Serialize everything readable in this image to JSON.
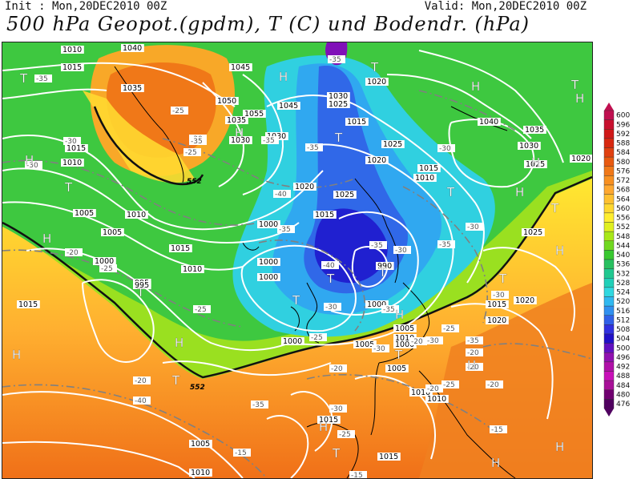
{
  "header": {
    "init": "Init : Mon,20DEC2010 00Z",
    "valid": "Valid: Mon,20DEC2010 00Z",
    "title": "500 hPa Geopot.(gpdm), T (C) und Bodendr. (hPa)"
  },
  "legend": {
    "levels": [
      "600",
      "596",
      "592",
      "588",
      "584",
      "580",
      "576",
      "572",
      "568",
      "564",
      "560",
      "556",
      "552",
      "548",
      "544",
      "540",
      "536",
      "532",
      "528",
      "524",
      "520",
      "516",
      "512",
      "508",
      "504",
      "500",
      "496",
      "492",
      "488",
      "484",
      "480",
      "476"
    ],
    "colors": [
      "#c01050",
      "#c8102e",
      "#d01818",
      "#d82810",
      "#e04010",
      "#e85a10",
      "#f07818",
      "#f89020",
      "#ffa830",
      "#ffc030",
      "#ffd830",
      "#ffee30",
      "#e0f020",
      "#a8e818",
      "#70d820",
      "#38c830",
      "#28c060",
      "#20c890",
      "#20d0b8",
      "#30d8e0",
      "#30b8f0",
      "#3090f0",
      "#3060e8",
      "#3030e0",
      "#2010c8",
      "#6010c0",
      "#9010b0",
      "#b010a8",
      "#c810b8",
      "#a81098",
      "#700070",
      "#500060"
    ]
  },
  "map": {
    "pressure_labels": [
      "1010",
      "1015",
      "1045",
      "1050",
      "1055",
      "1045",
      "1030",
      "1025",
      "1020",
      "1015",
      "1040",
      "1035",
      "1030",
      "1025",
      "1020",
      "1015",
      "1010",
      "1020",
      "1025",
      "1015",
      "1010",
      "1005",
      "1000",
      "995",
      "990",
      "1000",
      "1000",
      "995",
      "1000",
      "1005",
      "1010",
      "1015",
      "1020",
      "1025",
      "1030",
      "1035",
      "1040",
      "1035",
      "1030",
      "1015",
      "1010",
      "1005",
      "1000",
      "1000",
      "1005",
      "1010",
      "1015",
      "1015",
      "1010",
      "1005",
      "1010",
      "1020",
      "1025",
      "1020",
      "1015",
      "1010",
      "1005",
      "1000",
      "1015"
    ],
    "temp_labels": [
      "-35",
      "-35",
      "-30",
      "-25",
      "-25",
      "-30",
      "-35",
      "-35",
      "-40",
      "-35",
      "-30",
      "-35",
      "-35",
      "-30",
      "-25",
      "-20",
      "-25",
      "-30",
      "-35",
      "-40",
      "-30",
      "-25",
      "-20",
      "-25",
      "-30",
      "-35",
      "-40",
      "-35",
      "-30",
      "-25",
      "-20",
      "-20",
      "-20",
      "-20",
      "-15",
      "-15",
      "-15",
      "-20",
      "-25",
      "-30",
      "-30",
      "-30",
      "-35",
      "-20"
    ],
    "high_marks": [
      "H",
      "H",
      "H",
      "H",
      "H",
      "H",
      "H",
      "H",
      "H",
      "H",
      "H",
      "H",
      "H",
      "H",
      "H",
      "H"
    ],
    "low_marks": [
      "T",
      "T",
      "T",
      "T",
      "T",
      "T",
      "T",
      "T",
      "T",
      "T",
      "T",
      "T",
      "T",
      "T",
      "T"
    ],
    "geo_labels": [
      "552",
      "552"
    ]
  }
}
